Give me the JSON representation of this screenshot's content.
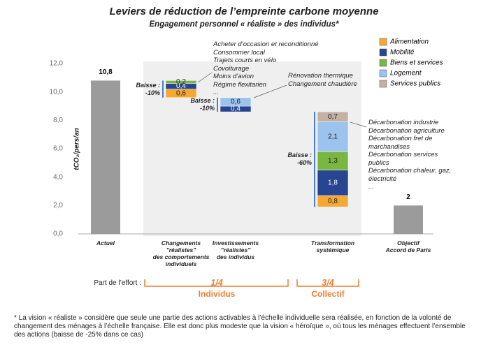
{
  "chart_data": {
    "type": "waterfall",
    "title": "Leviers de réduction de l’empreinte carbone moyenne",
    "subtitle": "Engagement personnel « réaliste » des individus*",
    "y_axis_label": "tCO₂/pers/an",
    "ylim": [
      0,
      12
    ],
    "yticks": [
      {
        "value": 0,
        "label": "0,0"
      },
      {
        "value": 2,
        "label": "2,0"
      },
      {
        "value": 4,
        "label": "4,0"
      },
      {
        "value": 6,
        "label": "6,0"
      },
      {
        "value": 8,
        "label": "8,0"
      },
      {
        "value": 10,
        "label": "10,0"
      },
      {
        "value": 12,
        "label": "12,0"
      }
    ],
    "categories": [
      "Actuel",
      "Changements\n\"réalistes\"\ndes comportements\nindividuels",
      "Investissements\n\"réalistes\"\ndes individus",
      "Transformation\nsystémique",
      "Objectif\nAccord de Paris"
    ],
    "totals": {
      "color": "#9b9b9b",
      "values": [
        10.8,
        null,
        null,
        null,
        2
      ],
      "value_labels": [
        "10,8",
        null,
        null,
        null,
        "2"
      ]
    },
    "series": [
      {
        "name": "Alimentation",
        "color": "#f5a833",
        "values": [
          null,
          0.6,
          null,
          0.8,
          null
        ],
        "value_labels": [
          null,
          "0,6",
          null,
          "0,8",
          null
        ]
      },
      {
        "name": "Mobilité",
        "color": "#27468f",
        "values": [
          null,
          0.4,
          0.4,
          1.8,
          null
        ],
        "value_labels": [
          null,
          "0,4",
          "0,4",
          "1,8",
          null
        ]
      },
      {
        "name": "Biens et services",
        "color": "#7ab642",
        "values": [
          null,
          0.2,
          null,
          1.3,
          null
        ],
        "value_labels": [
          null,
          "0,2",
          null,
          "1,3",
          null
        ]
      },
      {
        "name": "Logement",
        "color": "#9cc3ee",
        "values": [
          null,
          null,
          0.6,
          2.1,
          null
        ],
        "value_labels": [
          null,
          null,
          "0,6",
          "2,1",
          null
        ]
      },
      {
        "name": "Services publics",
        "color": "#c3b1a3",
        "values": [
          null,
          null,
          null,
          0.7,
          null
        ],
        "value_labels": [
          null,
          null,
          null,
          "0,7",
          null
        ]
      }
    ],
    "drop_labels": [
      null,
      "Baisse :\n-10%",
      "Baisse :\n-10%",
      "Baisse :\n-60%",
      null
    ],
    "actions": [
      null,
      "Acheter d’occasion et reconditionné\nConsommer local\nTrajets courts en vélo\nCovoiturage\nMoins d’avion\nRégime flexitarien\n...",
      "Rénovation thermique\nChangement chaudière",
      "Décarbonation industrie\nDécarbonation agriculture\nDécarbonation fret de\nmarchandises\nDécarbonation services\npublics\nDécarbonation chaleur, gaz,\nélectricité\n...",
      null
    ],
    "effort_label": "Part de l’effort :",
    "effort_groups": [
      {
        "share": "1/4",
        "name": "Individus"
      },
      {
        "share": "3/4",
        "name": "Collectif"
      }
    ],
    "footnote": "* La vision « réaliste » considère que seule une partie des actions activables à l’échelle individuelle sera réalisée, en fonction de la volonté de changement des ménages à l’échelle française. Elle est donc plus modeste que la vision « héroïque », où tous les ménages effectuent l’ensemble des actions (baisse de -25% dans ce cas)"
  }
}
